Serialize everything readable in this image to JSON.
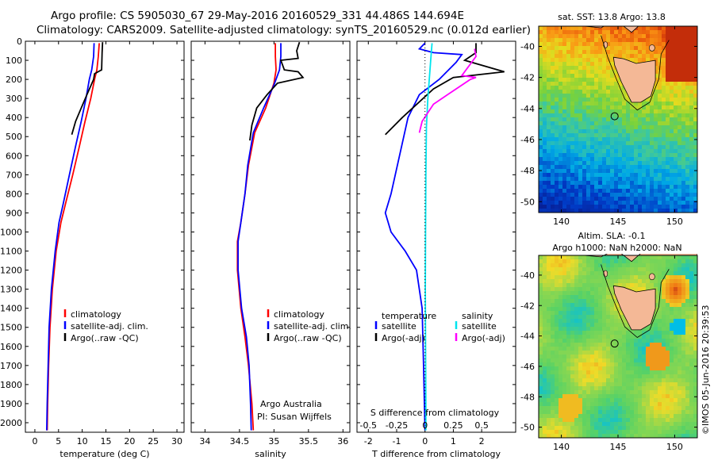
{
  "title": {
    "line1": "Argo profile: CS 5905030_67 29-May-2016 20160529_331 44.486S 144.694E",
    "line2": "Climatology: CARS2009. Satellite-adjusted climatology: synTS_20160529.nc (0.012d earlier)"
  },
  "side_label": "©IMOS 05-Jun-2016 20:39:53",
  "colors": {
    "climatology": "#ff0000",
    "satellite": "#0000ff",
    "argo": "#000000",
    "sal_satellite": "#00e5ee",
    "sal_argo": "#ff00ff"
  },
  "depth_ticks": [
    "0",
    "100",
    "200",
    "300",
    "400",
    "500",
    "600",
    "700",
    "800",
    "900",
    "1000",
    "1100",
    "1200",
    "1300",
    "1400",
    "1500",
    "1600",
    "1700",
    "1800",
    "1900",
    "2000"
  ],
  "chart_data": [
    {
      "type": "line",
      "name": "temperature",
      "xlabel": "temperature (deg C)",
      "xlim": [
        -2,
        31.5
      ],
      "ylim": [
        2050,
        0
      ],
      "xticks": [
        "0",
        "5",
        "10",
        "15",
        "20",
        "25",
        "30"
      ],
      "legend": [
        "climatology",
        "satellite-adj. clim.",
        "Argo(..raw -QC)"
      ],
      "series": [
        {
          "name": "climatology",
          "points": [
            [
              13.6,
              10
            ],
            [
              13.4,
              80
            ],
            [
              13.1,
              150
            ],
            [
              12.6,
              200
            ],
            [
              11.8,
              300
            ],
            [
              10.6,
              420
            ],
            [
              9.4,
              550
            ],
            [
              8.0,
              700
            ],
            [
              6.5,
              850
            ],
            [
              5.5,
              950
            ],
            [
              4.5,
              1100
            ],
            [
              3.7,
              1300
            ],
            [
              3.2,
              1500
            ],
            [
              2.9,
              1700
            ],
            [
              2.7,
              1900
            ],
            [
              2.6,
              2040
            ]
          ]
        },
        {
          "name": "satellite-adj. clim.",
          "points": [
            [
              12.5,
              10
            ],
            [
              12.4,
              80
            ],
            [
              12.0,
              150
            ],
            [
              11.5,
              200
            ],
            [
              10.8,
              300
            ],
            [
              9.8,
              420
            ],
            [
              8.6,
              550
            ],
            [
              7.3,
              700
            ],
            [
              6.0,
              850
            ],
            [
              5.1,
              950
            ],
            [
              4.3,
              1100
            ],
            [
              3.5,
              1300
            ],
            [
              3.0,
              1500
            ],
            [
              2.8,
              1700
            ],
            [
              2.6,
              1900
            ],
            [
              2.5,
              2040
            ]
          ]
        },
        {
          "name": "Argo(..raw -QC)",
          "points": [
            [
              14.3,
              5
            ],
            [
              14.2,
              60
            ],
            [
              14.1,
              150
            ],
            [
              12.6,
              170
            ],
            [
              12.4,
              200
            ],
            [
              11.0,
              280
            ],
            [
              9.8,
              350
            ],
            [
              8.6,
              420
            ],
            [
              7.8,
              490
            ]
          ]
        }
      ]
    },
    {
      "type": "line",
      "name": "salinity",
      "xlabel": "salinity",
      "xlim": [
        33.8,
        36.1
      ],
      "ylim": [
        2050,
        0
      ],
      "xticks": [
        "34",
        "34.5",
        "35",
        "35.5",
        "36"
      ],
      "legend": [
        "climatology",
        "satellite-adj. clim.",
        "Argo(..raw -QC)"
      ],
      "annotation": [
        "Argo Australia",
        "PI: Susan Wijffels"
      ],
      "series": [
        {
          "name": "climatology",
          "points": [
            [
              35.02,
              10
            ],
            [
              35.02,
              80
            ],
            [
              35.03,
              150
            ],
            [
              35.0,
              220
            ],
            [
              34.88,
              350
            ],
            [
              34.72,
              480
            ],
            [
              34.63,
              650
            ],
            [
              34.58,
              800
            ],
            [
              34.52,
              950
            ],
            [
              34.47,
              1050
            ],
            [
              34.47,
              1200
            ],
            [
              34.52,
              1400
            ],
            [
              34.58,
              1550
            ],
            [
              34.63,
              1700
            ],
            [
              34.68,
              1900
            ],
            [
              34.7,
              2040
            ]
          ]
        },
        {
          "name": "satellite-adj. clim.",
          "points": [
            [
              35.1,
              10
            ],
            [
              35.1,
              80
            ],
            [
              35.08,
              150
            ],
            [
              35.0,
              230
            ],
            [
              34.85,
              350
            ],
            [
              34.7,
              480
            ],
            [
              34.62,
              650
            ],
            [
              34.58,
              800
            ],
            [
              34.52,
              950
            ],
            [
              34.48,
              1050
            ],
            [
              34.48,
              1200
            ],
            [
              34.53,
              1400
            ],
            [
              34.6,
              1550
            ],
            [
              34.64,
              1700
            ],
            [
              34.66,
              1900
            ],
            [
              34.67,
              2040
            ]
          ]
        },
        {
          "name": "Argo(..raw -QC)",
          "points": [
            [
              35.37,
              5
            ],
            [
              35.33,
              50
            ],
            [
              35.35,
              90
            ],
            [
              35.1,
              100
            ],
            [
              35.15,
              150
            ],
            [
              35.35,
              160
            ],
            [
              35.42,
              190
            ],
            [
              35.05,
              220
            ],
            [
              34.9,
              280
            ],
            [
              34.75,
              350
            ],
            [
              34.68,
              440
            ],
            [
              34.65,
              520
            ]
          ]
        }
      ]
    },
    {
      "type": "line",
      "name": "difference",
      "xlabel": "T difference from climatology",
      "xlim": [
        -2.4,
        3.2
      ],
      "ylim": [
        2050,
        0
      ],
      "xticks": [
        "-2",
        "-1",
        "0",
        "1",
        "2"
      ],
      "top_axis_label": "S difference from climatology",
      "top_xticks": [
        "-0.5",
        "-0.25",
        "0",
        "0.25",
        "0.5"
      ],
      "legend_titles": [
        "temperature",
        "salinity"
      ],
      "legend": [
        "satellite",
        "Argo(-adj)",
        "satellite",
        "Argo(-adj)"
      ],
      "series": [
        {
          "name": "temperature satellite",
          "points": [
            [
              0,
              10
            ],
            [
              -0.2,
              40
            ],
            [
              0.3,
              60
            ],
            [
              1.3,
              70
            ],
            [
              1.1,
              110
            ],
            [
              0.5,
              200
            ],
            [
              -0.2,
              280
            ],
            [
              -0.6,
              400
            ],
            [
              -0.9,
              600
            ],
            [
              -1.2,
              800
            ],
            [
              -1.4,
              900
            ],
            [
              -1.2,
              1000
            ],
            [
              -0.7,
              1100
            ],
            [
              -0.3,
              1200
            ],
            [
              -0.1,
              1400
            ],
            [
              -0.05,
              1700
            ],
            [
              0,
              2040
            ]
          ]
        },
        {
          "name": "temperature Argo(-adj)",
          "points": [
            [
              1.8,
              10
            ],
            [
              1.8,
              60
            ],
            [
              1.4,
              100
            ],
            [
              2.8,
              160
            ],
            [
              1.0,
              190
            ],
            [
              0.3,
              250
            ],
            [
              -0.8,
              400
            ],
            [
              -1.4,
              490
            ]
          ]
        },
        {
          "name": "salinity satellite",
          "points": [
            [
              0.25,
              10
            ],
            [
              0.2,
              100
            ],
            [
              0.15,
              200
            ],
            [
              0.1,
              300
            ],
            [
              0.05,
              450
            ],
            [
              0.03,
              700
            ],
            [
              0.02,
              1000
            ],
            [
              0.01,
              1300
            ],
            [
              0.02,
              1600
            ],
            [
              0.03,
              1900
            ],
            [
              0.03,
              2040
            ]
          ]
        },
        {
          "name": "salinity Argo(-adj)",
          "points": [
            [
              1.75,
              40
            ],
            [
              1.8,
              80
            ],
            [
              1.3,
              180
            ],
            [
              1.8,
              190
            ],
            [
              1.6,
              200
            ],
            [
              0.8,
              280
            ],
            [
              0.3,
              330
            ],
            [
              -0.1,
              420
            ],
            [
              -0.2,
              480
            ]
          ]
        }
      ]
    },
    {
      "type": "heatmap",
      "name": "sst_map",
      "title": "sat. SST: 13.8  Argo: 13.8",
      "xticks": [
        "140",
        "145",
        "150"
      ],
      "yticks": [
        "-40",
        "-42",
        "-44",
        "-46",
        "-48",
        "-50"
      ],
      "xlim": [
        138,
        152
      ],
      "ylim": [
        -50.7,
        -38.7
      ],
      "marker": [
        144.7,
        -44.5
      ]
    },
    {
      "type": "heatmap",
      "name": "sla_map",
      "title": "Altim. SLA: -0.1",
      "subtitle": "Argo h1000: NaN  h2000: NaN",
      "xticks": [
        "140",
        "145",
        "150"
      ],
      "yticks": [
        "-40",
        "-42",
        "-44",
        "-46",
        "-48",
        "-50"
      ],
      "xlim": [
        138,
        152
      ],
      "ylim": [
        -50.7,
        -38.7
      ],
      "marker": [
        144.7,
        -44.5
      ]
    }
  ]
}
